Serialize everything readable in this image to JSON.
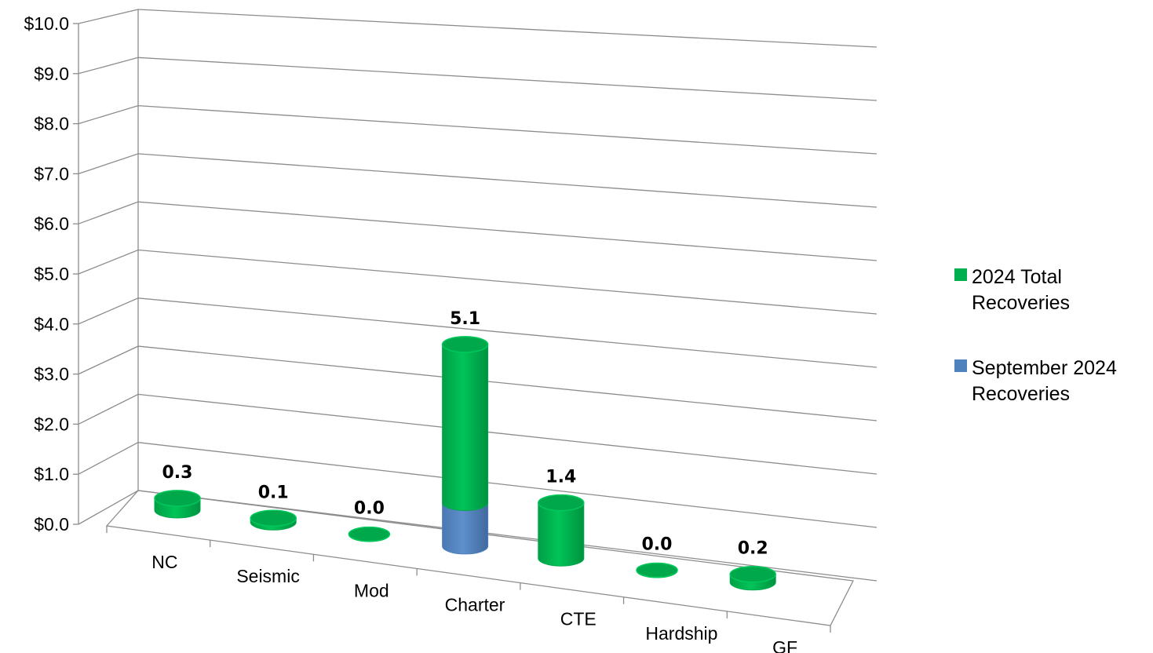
{
  "chart_data": {
    "type": "bar",
    "title": "",
    "xlabel": "",
    "ylabel": "",
    "ylim": [
      0,
      10
    ],
    "y_ticks": [
      "$0.0",
      "$1.0",
      "$2.0",
      "$3.0",
      "$4.0",
      "$5.0",
      "$6.0",
      "$7.0",
      "$8.0",
      "$9.0",
      "$10.0"
    ],
    "categories": [
      "NC",
      "Seismic",
      "Mod",
      "Charter",
      "CTE",
      "Hardship",
      "GF"
    ],
    "data_labels": [
      "0.3",
      "0.1",
      "0.0",
      "5.1",
      "1.4",
      "0.0",
      "0.2"
    ],
    "series": [
      {
        "name": "September 2024 Recoveries",
        "color": "#4f81bd",
        "values": [
          0,
          0,
          0,
          1.1,
          0,
          0,
          0
        ]
      },
      {
        "name": "2024 Total Recoveries",
        "color": "#00b050",
        "values": [
          0.3,
          0.1,
          0.0,
          4.0,
          1.4,
          0.0,
          0.2
        ]
      }
    ],
    "legend": {
      "position": "right",
      "entries": [
        {
          "lines": [
            "2024 Total",
            "Recoveries"
          ],
          "color": "#00b050"
        },
        {
          "lines": [
            "September 2024",
            "Recoveries"
          ],
          "color": "#4f81bd"
        }
      ]
    },
    "grid": true,
    "style": "3d-cylinder"
  }
}
